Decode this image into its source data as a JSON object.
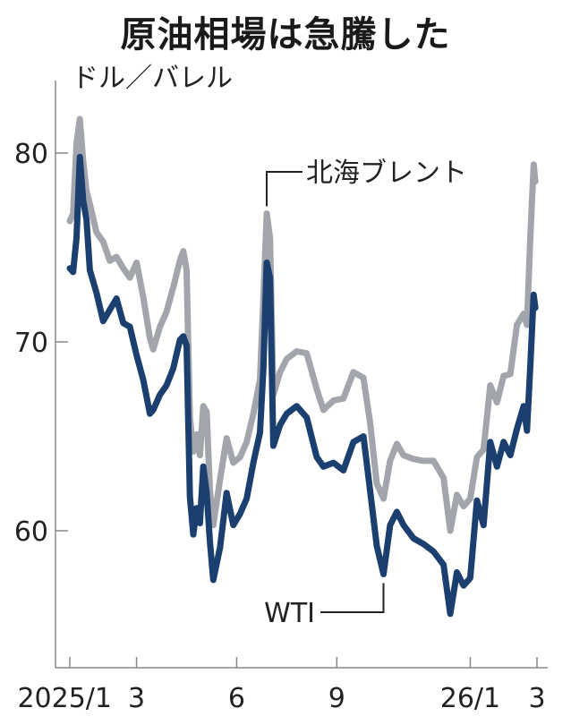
{
  "title": "原油相場は急騰した",
  "unit": "ドル／バレル",
  "chart_data": {
    "type": "line",
    "title": "原油相場は急騰した",
    "ylabel": "ドル／バレル",
    "ylim": [
      53,
      84
    ],
    "yticks": [
      60,
      70,
      80
    ],
    "xlim": [
      0,
      14.0
    ],
    "xticks": [
      {
        "x": 0,
        "label": "2025/1"
      },
      {
        "x": 2,
        "label": "3"
      },
      {
        "x": 5,
        "label": "6"
      },
      {
        "x": 8,
        "label": "9"
      },
      {
        "x": 12,
        "label": "26/1"
      },
      {
        "x": 14,
        "label": "3"
      }
    ],
    "series": [
      {
        "name": "北海ブレント",
        "color": "#a2a5ab",
        "points": [
          [
            0.0,
            76.4
          ],
          [
            0.1,
            76.8
          ],
          [
            0.2,
            80.5
          ],
          [
            0.3,
            81.8
          ],
          [
            0.4,
            79.6
          ],
          [
            0.5,
            78.0
          ],
          [
            0.6,
            77.3
          ],
          [
            0.8,
            75.8
          ],
          [
            1.0,
            75.3
          ],
          [
            1.2,
            74.3
          ],
          [
            1.4,
            74.5
          ],
          [
            1.6,
            73.9
          ],
          [
            1.8,
            73.4
          ],
          [
            2.0,
            74.2
          ],
          [
            2.2,
            72.4
          ],
          [
            2.4,
            70.2
          ],
          [
            2.5,
            69.6
          ],
          [
            2.7,
            70.8
          ],
          [
            2.9,
            71.6
          ],
          [
            3.1,
            72.9
          ],
          [
            3.3,
            74.3
          ],
          [
            3.4,
            74.8
          ],
          [
            3.5,
            73.8
          ],
          [
            3.6,
            66.0
          ],
          [
            3.7,
            64.2
          ],
          [
            3.8,
            65.1
          ],
          [
            3.9,
            64.0
          ],
          [
            4.0,
            66.6
          ],
          [
            4.1,
            66.3
          ],
          [
            4.2,
            62.1
          ],
          [
            4.3,
            60.3
          ],
          [
            4.5,
            62.7
          ],
          [
            4.7,
            64.9
          ],
          [
            4.9,
            63.6
          ],
          [
            5.1,
            63.9
          ],
          [
            5.3,
            64.7
          ],
          [
            5.5,
            66.2
          ],
          [
            5.7,
            68.0
          ],
          [
            5.8,
            72.3
          ],
          [
            5.9,
            76.8
          ],
          [
            6.0,
            75.5
          ],
          [
            6.1,
            67.2
          ],
          [
            6.3,
            68.4
          ],
          [
            6.5,
            69.1
          ],
          [
            6.8,
            69.5
          ],
          [
            7.1,
            69.4
          ],
          [
            7.4,
            67.5
          ],
          [
            7.6,
            66.4
          ],
          [
            7.9,
            66.9
          ],
          [
            8.2,
            67.0
          ],
          [
            8.5,
            68.4
          ],
          [
            8.8,
            68.1
          ],
          [
            9.0,
            65.7
          ],
          [
            9.2,
            62.5
          ],
          [
            9.4,
            61.7
          ],
          [
            9.6,
            63.7
          ],
          [
            9.8,
            64.6
          ],
          [
            10.0,
            64.0
          ],
          [
            10.3,
            63.8
          ],
          [
            10.6,
            63.7
          ],
          [
            10.9,
            63.7
          ],
          [
            11.2,
            62.8
          ],
          [
            11.4,
            60.0
          ],
          [
            11.6,
            61.9
          ],
          [
            11.8,
            61.3
          ],
          [
            12.0,
            61.7
          ],
          [
            12.2,
            63.9
          ],
          [
            12.4,
            64.3
          ],
          [
            12.6,
            67.7
          ],
          [
            12.8,
            66.8
          ],
          [
            13.0,
            68.2
          ],
          [
            13.2,
            68.3
          ],
          [
            13.4,
            70.9
          ],
          [
            13.6,
            71.5
          ],
          [
            13.7,
            70.9
          ],
          [
            13.8,
            75.5
          ],
          [
            13.9,
            79.4
          ],
          [
            13.95,
            78.5
          ]
        ]
      },
      {
        "name": "WTI",
        "color": "#1b3f6e",
        "points": [
          [
            0.0,
            73.9
          ],
          [
            0.1,
            73.7
          ],
          [
            0.2,
            75.5
          ],
          [
            0.3,
            79.8
          ],
          [
            0.4,
            77.5
          ],
          [
            0.5,
            76.5
          ],
          [
            0.6,
            73.8
          ],
          [
            0.8,
            72.6
          ],
          [
            1.0,
            71.1
          ],
          [
            1.2,
            71.7
          ],
          [
            1.4,
            72.3
          ],
          [
            1.6,
            71.0
          ],
          [
            1.8,
            70.8
          ],
          [
            2.0,
            69.3
          ],
          [
            2.2,
            68.0
          ],
          [
            2.4,
            66.2
          ],
          [
            2.5,
            66.4
          ],
          [
            2.7,
            67.2
          ],
          [
            2.9,
            67.7
          ],
          [
            3.1,
            68.6
          ],
          [
            3.3,
            70.1
          ],
          [
            3.4,
            70.3
          ],
          [
            3.5,
            69.8
          ],
          [
            3.6,
            61.8
          ],
          [
            3.7,
            59.8
          ],
          [
            3.8,
            61.2
          ],
          [
            3.9,
            60.4
          ],
          [
            4.0,
            63.4
          ],
          [
            4.1,
            62.0
          ],
          [
            4.2,
            59.4
          ],
          [
            4.3,
            57.4
          ],
          [
            4.5,
            59.1
          ],
          [
            4.7,
            62.0
          ],
          [
            4.9,
            60.3
          ],
          [
            5.1,
            60.9
          ],
          [
            5.3,
            61.7
          ],
          [
            5.5,
            63.6
          ],
          [
            5.7,
            65.2
          ],
          [
            5.8,
            68.6
          ],
          [
            5.9,
            74.2
          ],
          [
            6.0,
            73.4
          ],
          [
            6.1,
            64.5
          ],
          [
            6.3,
            65.6
          ],
          [
            6.5,
            66.2
          ],
          [
            6.8,
            66.6
          ],
          [
            7.1,
            66.0
          ],
          [
            7.4,
            63.9
          ],
          [
            7.6,
            63.4
          ],
          [
            7.9,
            63.6
          ],
          [
            8.2,
            63.2
          ],
          [
            8.5,
            64.7
          ],
          [
            8.8,
            65.0
          ],
          [
            9.0,
            62.1
          ],
          [
            9.2,
            59.2
          ],
          [
            9.4,
            57.7
          ],
          [
            9.6,
            60.3
          ],
          [
            9.8,
            61.0
          ],
          [
            10.0,
            60.3
          ],
          [
            10.3,
            59.6
          ],
          [
            10.6,
            59.3
          ],
          [
            10.9,
            58.9
          ],
          [
            11.2,
            58.2
          ],
          [
            11.4,
            55.6
          ],
          [
            11.6,
            57.8
          ],
          [
            11.8,
            57.1
          ],
          [
            12.0,
            57.5
          ],
          [
            12.2,
            61.6
          ],
          [
            12.4,
            60.3
          ],
          [
            12.6,
            64.7
          ],
          [
            12.8,
            63.4
          ],
          [
            13.0,
            64.7
          ],
          [
            13.2,
            64.0
          ],
          [
            13.4,
            65.4
          ],
          [
            13.6,
            66.6
          ],
          [
            13.7,
            65.3
          ],
          [
            13.8,
            68.7
          ],
          [
            13.9,
            72.5
          ],
          [
            13.95,
            71.8
          ]
        ]
      }
    ],
    "annotations": [
      {
        "series": "北海ブレント",
        "text": "北海ブレント"
      },
      {
        "series": "WTI",
        "text": "WTI"
      }
    ]
  }
}
